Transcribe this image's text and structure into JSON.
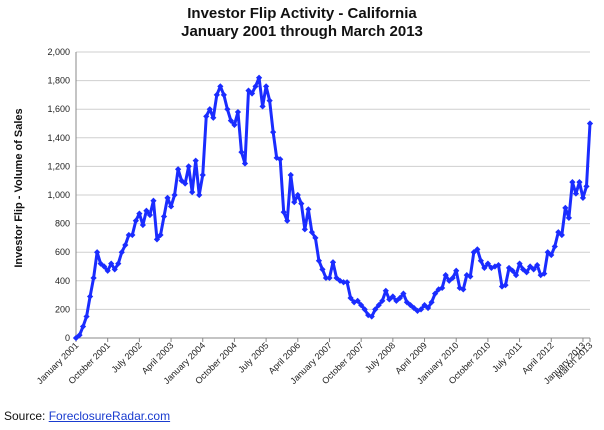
{
  "chart_data": {
    "type": "line",
    "title_line1": "Investor Flip Activity - California",
    "title_line2": "January 2001 through March 2013",
    "ylabel": "Investor Flip - Volume of Sales",
    "xlabel": "",
    "ylim": [
      0,
      2000
    ],
    "yticks": [
      "0",
      "200",
      "400",
      "600",
      "800",
      "1,000",
      "1,200",
      "1,400",
      "1,600",
      "1,800",
      "2,000"
    ],
    "grid": true,
    "legend": "none",
    "color": "#1a2cff",
    "xticks": [
      {
        "label": "January 2001",
        "index": 0
      },
      {
        "label": "October 2001",
        "index": 9
      },
      {
        "label": "July 2002",
        "index": 18
      },
      {
        "label": "April 2003",
        "index": 27
      },
      {
        "label": "January 2004",
        "index": 36
      },
      {
        "label": "October 2004",
        "index": 45
      },
      {
        "label": "July 2005",
        "index": 54
      },
      {
        "label": "April 2006",
        "index": 63
      },
      {
        "label": "January 2007",
        "index": 72
      },
      {
        "label": "October 2007",
        "index": 81
      },
      {
        "label": "July 2008",
        "index": 90
      },
      {
        "label": "April 2009",
        "index": 99
      },
      {
        "label": "January 2010",
        "index": 108
      },
      {
        "label": "October 2010",
        "index": 117
      },
      {
        "label": "July 2011",
        "index": 126
      },
      {
        "label": "April 2012",
        "index": 135
      },
      {
        "label": "January 2013",
        "index": 144
      },
      {
        "label": "March 2013",
        "index": 146
      }
    ],
    "series": [
      {
        "values": [
          0,
          20,
          80,
          150,
          290,
          420,
          600,
          520,
          500,
          470,
          520,
          480,
          520,
          600,
          650,
          720,
          720,
          820,
          870,
          790,
          890,
          860,
          960,
          690,
          720,
          850,
          980,
          920,
          1000,
          1180,
          1100,
          1080,
          1200,
          1020,
          1240,
          1000,
          1140,
          1550,
          1600,
          1540,
          1700,
          1760,
          1700,
          1600,
          1520,
          1490,
          1580,
          1300,
          1220,
          1730,
          1710,
          1760,
          1820,
          1620,
          1760,
          1660,
          1440,
          1260,
          1250,
          880,
          820,
          1140,
          950,
          1000,
          940,
          760,
          900,
          740,
          700,
          540,
          480,
          420,
          420,
          530,
          420,
          400,
          390,
          390,
          280,
          250,
          260,
          230,
          200,
          160,
          150,
          200,
          230,
          260,
          330,
          270,
          290,
          260,
          280,
          310,
          250,
          230,
          210,
          190,
          200,
          230,
          210,
          250,
          310,
          340,
          350,
          440,
          400,
          420,
          470,
          350,
          340,
          440,
          430,
          600,
          620,
          540,
          490,
          520,
          490,
          500,
          510,
          360,
          370,
          490,
          470,
          440,
          520,
          480,
          460,
          500,
          480,
          510,
          440,
          450,
          600,
          580,
          640,
          740,
          720,
          910,
          840,
          1090,
          1010,
          1090,
          980,
          1060,
          1500
        ]
      }
    ]
  },
  "source": {
    "label": "Source:",
    "link": "ForeclosureRadar.com"
  }
}
